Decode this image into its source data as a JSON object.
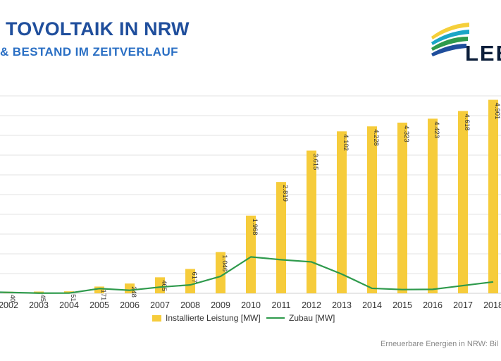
{
  "header": {
    "title": "TOVOLTAIK IN NRW",
    "subtitle": "& BESTAND IM ZEITVERLAUF"
  },
  "logo": {
    "text": "LEE",
    "colors": [
      "#f5cf3a",
      "#1aa5c6",
      "#2e9a4c",
      "#1f4e9c"
    ]
  },
  "source": "Erneuerbare Energien in NRW: Bil",
  "legend": {
    "bar_label": "Installierte Leistung [MW]",
    "line_label": "Zubau [MW]"
  },
  "colors": {
    "bar": "#f6cc3b",
    "line": "#2e9a4c",
    "grid": "#e3e3e3"
  },
  "chart_data": {
    "type": "bar",
    "categories": [
      "2002",
      "2003",
      "2004",
      "2005",
      "2006",
      "2007",
      "2008",
      "2009",
      "2010",
      "2011",
      "2012",
      "2013",
      "2014",
      "2015",
      "2016",
      "2017",
      "2018"
    ],
    "series": [
      {
        "name": "Installierte Leistung [MW]",
        "type": "bar",
        "values": [
          40,
          45,
          51,
          171,
          248,
          405,
          617,
          1046,
          1968,
          2819,
          3615,
          4102,
          4228,
          4323,
          4423,
          4618,
          4901
        ],
        "labels": [
          "40",
          "45",
          "51",
          "171",
          "248",
          "405",
          "617",
          "1.046",
          "1.968",
          "2.819",
          "3.615",
          "4.102",
          "4.228",
          "4.323",
          "4.423",
          "4.618",
          "4.901"
        ]
      },
      {
        "name": "Zubau [MW]",
        "type": "line",
        "values": [
          28,
          5,
          6,
          120,
          77,
          157,
          212,
          429,
          922,
          851,
          796,
          487,
          126,
          95,
          100,
          195,
          289
        ]
      }
    ],
    "ylim": [
      0,
      5000
    ],
    "grid": true,
    "legend_position": "bottom"
  }
}
